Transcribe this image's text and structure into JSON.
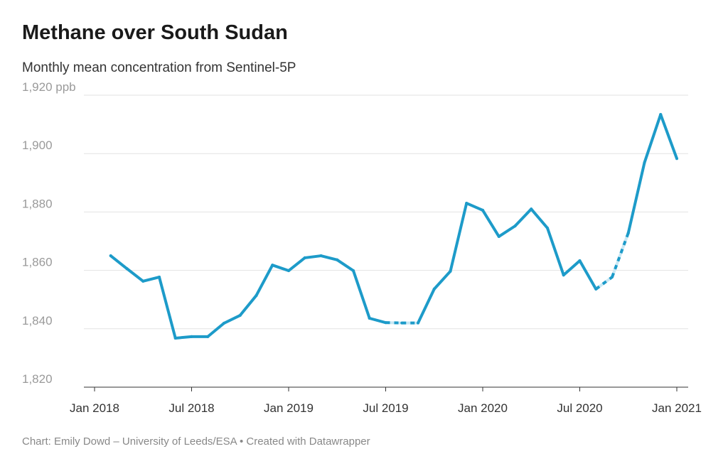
{
  "title": "Methane over South Sudan",
  "subtitle": "Monthly mean concentration from Sentinel-5P",
  "footer": "Chart: Emily Dowd – University of Leeds/ESA • Created with Datawrapper",
  "chart_data": {
    "type": "line",
    "title": "Methane over South Sudan",
    "subtitle": "Monthly mean concentration from Sentinel-5P",
    "ylim": [
      1820,
      1920
    ],
    "y_ticks": [
      1820,
      1840,
      1860,
      1880,
      1900,
      1920
    ],
    "y_tick_labels": [
      "1,820",
      "1,840",
      "1,860",
      "1,880",
      "1,900",
      "1,920 ppb"
    ],
    "x_tick_labels": [
      "Jan 2018",
      "Jul 2018",
      "Jan 2019",
      "Jul 2019",
      "Jan 2020",
      "Jul 2020",
      "Jan 2021"
    ],
    "grid": true,
    "color": "#1d9bc9",
    "dashed_color": "#c9e8f4",
    "x": [
      "2018-02",
      "2018-03",
      "2018-04",
      "2018-05",
      "2018-06",
      "2018-07",
      "2018-08",
      "2018-09",
      "2018-10",
      "2018-11",
      "2018-12",
      "2019-01",
      "2019-02",
      "2019-03",
      "2019-04",
      "2019-05",
      "2019-06",
      "2019-07",
      "2019-08",
      "2019-09",
      "2019-10",
      "2019-11",
      "2019-12",
      "2020-01",
      "2020-02",
      "2020-03",
      "2020-04",
      "2020-05",
      "2020-06",
      "2020-07",
      "2020-08",
      "2020-09",
      "2020-10",
      "2020-11",
      "2020-12",
      "2021-01"
    ],
    "values": [
      1865,
      1860.6,
      1856.3,
      1857.7,
      1836.8,
      1837.3,
      1837.3,
      1841.9,
      1844.6,
      1851.4,
      1861.8,
      1859.9,
      1864.3,
      1865,
      1863.6,
      1859.9,
      1843.6,
      1842.1,
      1842,
      1842,
      1853.6,
      1859.7,
      1883,
      1880.6,
      1871.6,
      1875.2,
      1881,
      1874.5,
      1858.4,
      1863.3,
      1853.6,
      1857.7,
      1872.8,
      1896.9,
      1913.4,
      1898.3
    ],
    "dashed_segments": [
      [
        "2019-07",
        "2019-09"
      ],
      [
        "2020-08",
        "2020-10"
      ]
    ]
  }
}
